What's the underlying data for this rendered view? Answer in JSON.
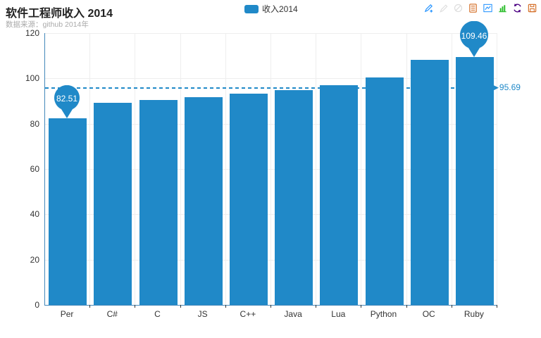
{
  "header": {
    "title": "软件工程师收入 2014",
    "subtitle": "数据来源：github 2014年"
  },
  "toolbox": {
    "icons": [
      {
        "name": "mark-line-icon",
        "type": "pencil-add",
        "color": "#1e90ff"
      },
      {
        "name": "mark-undo-icon",
        "type": "pencil",
        "color": "#dddddd"
      },
      {
        "name": "mark-clear-icon",
        "type": "circle-slash",
        "color": "#dddddd"
      },
      {
        "name": "data-view-icon",
        "type": "doc",
        "color": "#d2691e"
      },
      {
        "name": "magic-line-icon",
        "type": "line-chart",
        "color": "#1e90ff"
      },
      {
        "name": "magic-bar-icon",
        "type": "bar-chart",
        "color": "#22bb22"
      },
      {
        "name": "restore-icon",
        "type": "refresh",
        "color": "#4b0082"
      },
      {
        "name": "save-image-icon",
        "type": "floppy",
        "color": "#d2691e"
      }
    ]
  },
  "chart_data": {
    "type": "bar",
    "title": "软件工程师收入 2014",
    "subtitle": "数据来源：github 2014年",
    "categories": [
      "Per",
      "C#",
      "C",
      "JS",
      "C++",
      "Java",
      "Lua",
      "Python",
      "OC",
      "Ruby"
    ],
    "series": [
      {
        "name": "收入2014",
        "color": "#2089c8",
        "values": [
          82.51,
          89.3,
          90.4,
          91.6,
          93.2,
          94.8,
          97.0,
          100.3,
          108.3,
          109.46
        ]
      }
    ],
    "ylim": [
      0,
      120
    ],
    "ytick_interval": 20,
    "y_tick_labels": [
      "0",
      "20",
      "40",
      "60",
      "80",
      "100",
      "120"
    ],
    "grid": true,
    "legend_position": "top-center",
    "markpoints": [
      {
        "type": "min",
        "category": "Per",
        "value": 82.51,
        "label": "82.51"
      },
      {
        "type": "max",
        "category": "Ruby",
        "value": 109.46,
        "label": "109.46"
      }
    ],
    "markline": {
      "type": "average",
      "value": 95.69,
      "label": "95.69",
      "arrow": "▶"
    },
    "colors": {
      "bar": "#2089c8",
      "axis_line": "#4488bb",
      "grid_line": "#eeeeee",
      "markline": "#2089c8",
      "pin_text": "#ffffff",
      "label_text": "#333333",
      "subtitle_text": "#aaaaaa"
    }
  }
}
